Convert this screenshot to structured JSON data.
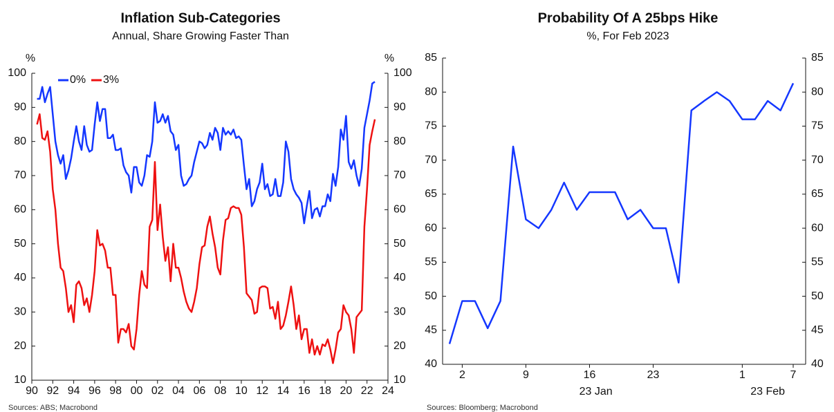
{
  "chart_data": [
    {
      "type": "line",
      "title": "Inflation Sub-Categories",
      "subtitle": "Annual, Share Growing Faster Than",
      "y_unit_label": "%",
      "y2_unit_label": "%",
      "source": "Sources: ABS; Macrobond",
      "legend": "top-left",
      "x": [
        1990.5,
        1990.75,
        1991,
        1991.25,
        1991.5,
        1991.75,
        1992,
        1992.25,
        1992.5,
        1992.75,
        1993,
        1993.25,
        1993.5,
        1993.75,
        1994,
        1994.25,
        1994.5,
        1994.75,
        1995,
        1995.25,
        1995.5,
        1995.75,
        1996,
        1996.25,
        1996.5,
        1996.75,
        1997,
        1997.25,
        1997.5,
        1997.75,
        1998,
        1998.25,
        1998.5,
        1998.75,
        1999,
        1999.25,
        1999.5,
        1999.75,
        2000,
        2000.25,
        2000.5,
        2000.75,
        2001,
        2001.25,
        2001.5,
        2001.75,
        2002,
        2002.25,
        2002.5,
        2002.75,
        2003,
        2003.25,
        2003.5,
        2003.75,
        2004,
        2004.25,
        2004.5,
        2004.75,
        2005,
        2005.25,
        2005.5,
        2005.75,
        2006,
        2006.25,
        2006.5,
        2006.75,
        2007,
        2007.25,
        2007.5,
        2007.75,
        2008,
        2008.25,
        2008.5,
        2008.75,
        2009,
        2009.25,
        2009.5,
        2009.75,
        2010,
        2010.25,
        2010.5,
        2010.75,
        2011,
        2011.25,
        2011.5,
        2011.75,
        2012,
        2012.25,
        2012.5,
        2012.75,
        2013,
        2013.25,
        2013.5,
        2013.75,
        2014,
        2014.25,
        2014.5,
        2014.75,
        2015,
        2015.25,
        2015.5,
        2015.75,
        2016,
        2016.25,
        2016.5,
        2016.75,
        2017,
        2017.25,
        2017.5,
        2017.75,
        2018,
        2018.25,
        2018.5,
        2018.75,
        2019,
        2019.25,
        2019.5,
        2019.75,
        2020,
        2020.25,
        2020.5,
        2020.75,
        2021,
        2021.25,
        2021.5,
        2021.75,
        2022,
        2022.25,
        2022.5,
        2022.75
      ],
      "series": [
        {
          "name": "0%",
          "color": "#1437ff",
          "values": [
            92.5,
            92.5,
            96,
            91.5,
            94,
            96,
            88,
            80,
            76,
            73.5,
            76,
            69,
            71.5,
            75,
            80,
            84.5,
            80,
            77.5,
            84.5,
            79,
            77,
            77.5,
            85,
            91.5,
            86,
            89.5,
            89.5,
            81,
            81,
            82,
            77.5,
            77.5,
            78,
            73,
            71,
            70,
            65,
            72.5,
            72.5,
            68,
            67,
            70,
            76,
            75.5,
            80,
            91.5,
            85.5,
            86,
            88,
            85.5,
            87.5,
            83,
            82,
            77.5,
            79,
            70,
            67,
            67.5,
            69,
            70,
            74,
            77,
            80,
            79.5,
            78,
            79,
            82.5,
            80.5,
            84,
            82.5,
            77.5,
            84,
            82,
            83,
            82,
            83.5,
            81,
            81.5,
            80.5,
            73,
            66,
            69,
            61,
            62.5,
            66,
            68,
            73.5,
            66,
            67.5,
            64,
            64.5,
            69,
            64,
            64,
            68,
            80,
            77,
            69,
            66,
            64.5,
            63.5,
            62,
            56,
            61,
            65.5,
            57.5,
            60,
            60.5,
            58,
            61,
            61,
            64.5,
            62.5,
            70.5,
            67,
            72.5,
            83.5,
            80.5,
            87.5,
            74,
            72,
            74.5,
            70,
            67,
            72,
            84,
            88,
            92,
            97,
            97.5
          ]
        },
        {
          "name": "3%",
          "color": "#ee1111",
          "values": [
            85,
            88,
            81,
            80.5,
            83,
            77,
            66,
            60,
            50,
            43,
            42,
            37,
            30,
            32,
            27,
            38,
            39,
            37,
            32,
            34,
            30,
            35,
            42,
            54,
            49.5,
            50,
            48,
            43,
            43,
            35,
            35,
            21,
            25,
            25,
            24,
            26.5,
            20,
            19,
            25,
            35,
            42,
            38,
            37,
            55,
            57,
            74,
            54,
            61.5,
            52,
            45,
            49,
            39,
            50,
            43,
            43,
            40,
            36,
            33,
            31,
            30,
            33,
            37,
            44,
            49,
            49.5,
            55,
            58,
            53,
            49,
            43,
            41,
            51,
            57,
            57.5,
            60.5,
            61,
            60.5,
            60.5,
            58.5,
            49,
            35.5,
            34.5,
            33.5,
            29.5,
            30,
            37,
            37.5,
            37.5,
            37,
            31,
            31.5,
            28,
            33,
            25,
            26,
            29,
            33,
            37.5,
            32,
            25,
            29,
            22,
            25,
            25,
            18,
            22,
            17.5,
            20,
            17.5,
            20.5,
            20,
            22,
            19,
            15,
            19,
            24,
            25,
            32,
            30,
            29,
            25,
            18,
            28.5,
            29.5,
            30.5,
            55,
            66,
            79,
            83,
            86.5
          ]
        }
      ],
      "xlim": [
        1990,
        2024
      ],
      "xticks": [
        {
          "value": 1990,
          "label": "90"
        },
        {
          "value": 1992,
          "label": "92"
        },
        {
          "value": 1994,
          "label": "94"
        },
        {
          "value": 1996,
          "label": "96"
        },
        {
          "value": 1998,
          "label": "98"
        },
        {
          "value": 2000,
          "label": "00"
        },
        {
          "value": 2002,
          "label": "02"
        },
        {
          "value": 2004,
          "label": "04"
        },
        {
          "value": 2006,
          "label": "06"
        },
        {
          "value": 2008,
          "label": "08"
        },
        {
          "value": 2010,
          "label": "10"
        },
        {
          "value": 2012,
          "label": "12"
        },
        {
          "value": 2014,
          "label": "14"
        },
        {
          "value": 2016,
          "label": "16"
        },
        {
          "value": 2018,
          "label": "18"
        },
        {
          "value": 2020,
          "label": "20"
        },
        {
          "value": 2022,
          "label": "22"
        },
        {
          "value": 2024,
          "label": "24"
        }
      ],
      "ylim": [
        10,
        100
      ],
      "yticks": [
        10,
        20,
        30,
        40,
        50,
        60,
        70,
        80,
        90,
        100
      ],
      "y2lim": [
        10,
        100
      ],
      "y2ticks": [
        10,
        20,
        30,
        40,
        50,
        60,
        70,
        80,
        90,
        100
      ]
    },
    {
      "type": "line",
      "title": "Probability Of A 25bps Hike",
      "subtitle": "%, For Feb 2023",
      "source": "Sources: Bloomberg; Macrobond",
      "x_scale": "business-days",
      "x": [
        "2022-12-30",
        "2023-01-02",
        "2023-01-03",
        "2023-01-04",
        "2023-01-05",
        "2023-01-06",
        "2023-01-09",
        "2023-01-10",
        "2023-01-11",
        "2023-01-12",
        "2023-01-13",
        "2023-01-16",
        "2023-01-17",
        "2023-01-18",
        "2023-01-19",
        "2023-01-20",
        "2023-01-23",
        "2023-01-24",
        "2023-01-25",
        "2023-01-26",
        "2023-01-27",
        "2023-01-30",
        "2023-01-31",
        "2023-02-01",
        "2023-02-02",
        "2023-02-03",
        "2023-02-06",
        "2023-02-07"
      ],
      "series": [
        {
          "name": "Probability",
          "color": "#1437ff",
          "values": [
            43,
            49.3,
            49.3,
            45.3,
            49.3,
            72,
            61.3,
            60,
            62.7,
            66.7,
            62.7,
            65.3,
            65.3,
            65.3,
            61.3,
            62.7,
            60,
            60,
            52,
            77.3,
            78.7,
            80,
            78.7,
            76,
            76,
            78.7,
            77.3,
            81.3
          ]
        }
      ],
      "xticks": [
        {
          "value": "2023-01-02",
          "label": "2"
        },
        {
          "value": "2023-01-09",
          "label": "9"
        },
        {
          "value": "2023-01-16",
          "label": "16"
        },
        {
          "value": "2023-01-23",
          "label": "23"
        },
        {
          "value": "2023-02-01",
          "label": "1"
        },
        {
          "value": "2023-02-07",
          "label": "7"
        }
      ],
      "xgroups": [
        {
          "value": "2023-01",
          "label": "23 Jan"
        },
        {
          "value": "2023-02",
          "label": "23 Feb"
        }
      ],
      "ylim": [
        40,
        85
      ],
      "yticks": [
        40,
        45,
        50,
        55,
        60,
        65,
        70,
        75,
        80,
        85
      ],
      "y2lim": [
        40,
        85
      ],
      "y2ticks": [
        40,
        45,
        50,
        55,
        60,
        65,
        70,
        75,
        80,
        85
      ]
    }
  ]
}
